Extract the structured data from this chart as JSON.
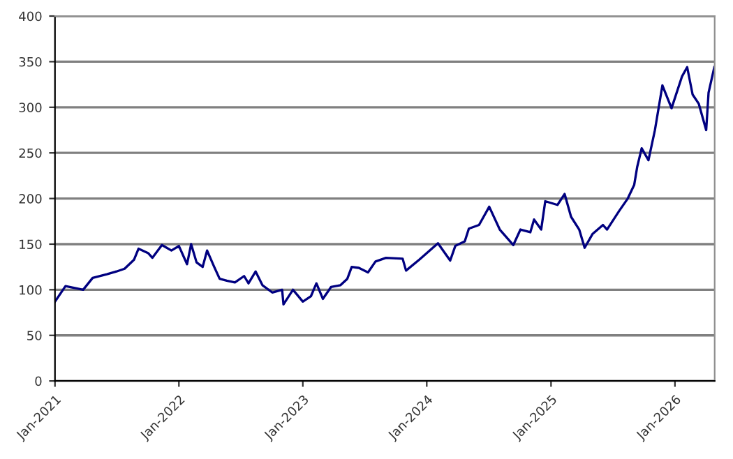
{
  "chart_data": {
    "type": "line",
    "x": [
      "2021-01-01",
      "2021-02-01",
      "2021-03-25",
      "2021-04-22",
      "2021-06-03",
      "2021-07-01",
      "2021-07-25",
      "2021-08-22",
      "2021-09-04",
      "2021-10-03",
      "2021-10-15",
      "2021-11-12",
      "2021-12-10",
      "2022-01-01",
      "2022-01-25",
      "2022-02-06",
      "2022-02-22",
      "2022-03-12",
      "2022-03-25",
      "2022-04-15",
      "2022-05-01",
      "2022-05-22",
      "2022-06-15",
      "2022-07-12",
      "2022-07-25",
      "2022-08-15",
      "2022-09-04",
      "2022-10-03",
      "2022-11-01",
      "2022-11-05",
      "2022-12-03",
      "2023-01-01",
      "2023-01-25",
      "2023-02-10",
      "2023-03-01",
      "2023-03-25",
      "2023-04-22",
      "2023-05-12",
      "2023-05-25",
      "2023-06-15",
      "2023-07-12",
      "2023-08-03",
      "2023-09-03",
      "2023-10-22",
      "2023-11-01",
      "2023-12-10",
      "2024-02-03",
      "2024-03-10",
      "2024-03-25",
      "2024-04-22",
      "2024-05-04",
      "2024-06-03",
      "2024-07-03",
      "2024-08-03",
      "2024-09-12",
      "2024-10-03",
      "2024-11-01",
      "2024-11-12",
      "2024-12-03",
      "2024-12-15",
      "2025-01-20",
      "2025-02-10",
      "2025-03-01",
      "2025-03-25",
      "2025-04-10",
      "2025-05-03",
      "2025-06-03",
      "2025-06-15",
      "2025-07-20",
      "2025-08-15",
      "2025-09-03",
      "2025-09-12",
      "2025-09-25",
      "2025-10-15",
      "2025-11-03",
      "2025-11-25",
      "2025-12-22",
      "2026-01-22",
      "2026-02-06",
      "2026-02-22",
      "2026-03-12",
      "2026-04-03",
      "2026-04-10",
      "2026-04-27"
    ],
    "series": [
      {
        "color": "#000080",
        "values": [
          87,
          104,
          100,
          113,
          117,
          120,
          123,
          133,
          145,
          140,
          135,
          149,
          143,
          148,
          128,
          150,
          130,
          125,
          143,
          125,
          112,
          110,
          108,
          115,
          107,
          120,
          105,
          97,
          100,
          84,
          100,
          87,
          93,
          107,
          90,
          103,
          105,
          112,
          125,
          124,
          119,
          131,
          135,
          134,
          121,
          133,
          151,
          132,
          148,
          153,
          167,
          171,
          191,
          166,
          149,
          166,
          163,
          177,
          166,
          197,
          193,
          205,
          180,
          166,
          146,
          161,
          171,
          166,
          186,
          200,
          215,
          235,
          255,
          242,
          275,
          324,
          299,
          334,
          344,
          314,
          304,
          275,
          316,
          344
        ]
      }
    ],
    "xlim": [
      "2021-01-01",
      "2026-04-28"
    ],
    "xticks": [
      {
        "value": "2021-01-01",
        "label": "Jan-2021"
      },
      {
        "value": "2022-01-01",
        "label": "Jan-2022"
      },
      {
        "value": "2023-01-01",
        "label": "Jan-2023"
      },
      {
        "value": "2024-01-01",
        "label": "Jan-2024"
      },
      {
        "value": "2025-01-01",
        "label": "Jan-2025"
      },
      {
        "value": "2026-01-01",
        "label": "Jan-2026"
      }
    ],
    "ylim": [
      0,
      400
    ],
    "yticks": [
      0,
      50,
      100,
      150,
      200,
      250,
      300,
      350,
      400
    ],
    "grid": "y",
    "legend": false,
    "marker": "none",
    "line_style": "solid"
  }
}
